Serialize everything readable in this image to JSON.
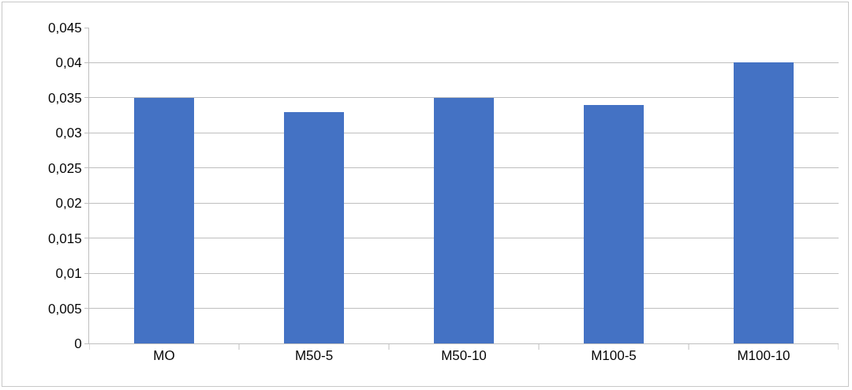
{
  "chart_data": {
    "type": "bar",
    "categories": [
      "MO",
      "M50-5",
      "M50-10",
      "M100-5",
      "M100-10"
    ],
    "values": [
      0.035,
      0.033,
      0.035,
      0.034,
      0.04
    ],
    "color": "#4472c4",
    "ylim": [
      0,
      0.045
    ],
    "yticks": [
      {
        "value": 0,
        "label": "0"
      },
      {
        "value": 0.005,
        "label": "0,005"
      },
      {
        "value": 0.01,
        "label": "0,01"
      },
      {
        "value": 0.015,
        "label": "0,015"
      },
      {
        "value": 0.02,
        "label": "0,02"
      },
      {
        "value": 0.025,
        "label": "0,025"
      },
      {
        "value": 0.03,
        "label": "0,03"
      },
      {
        "value": 0.035,
        "label": "0,035"
      },
      {
        "value": 0.04,
        "label": "0,04"
      },
      {
        "value": 0.045,
        "label": "0,045"
      }
    ],
    "grid": "y",
    "legend": false
  }
}
